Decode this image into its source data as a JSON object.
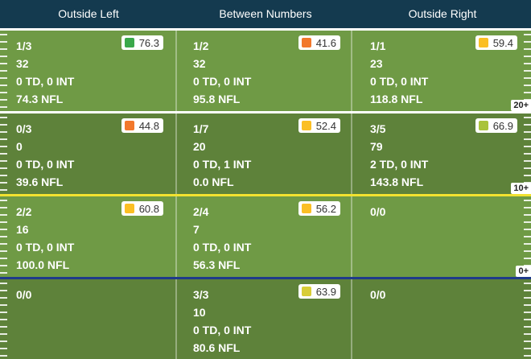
{
  "columns": [
    "Outside Left",
    "Between Numbers",
    "Outside Right"
  ],
  "yard_markers": [
    "20+",
    "10+",
    "0+"
  ],
  "colors": {
    "green": "#3aa84a",
    "orange": "#f2782c",
    "amber": "#fbbf24",
    "yellow": "#d8cd36",
    "lime": "#a9c33b"
  },
  "rows": [
    [
      {
        "att": "1/3",
        "yds": "32",
        "tdint": "0 TD, 0 INT",
        "rating": "74.3 NFL",
        "grade": "76.3",
        "grade_color": "#3aa84a"
      },
      {
        "att": "1/2",
        "yds": "32",
        "tdint": "0 TD, 0 INT",
        "rating": "95.8 NFL",
        "grade": "41.6",
        "grade_color": "#f2782c"
      },
      {
        "att": "1/1",
        "yds": "23",
        "tdint": "0 TD, 0 INT",
        "rating": "118.8 NFL",
        "grade": "59.4",
        "grade_color": "#fbbf24"
      }
    ],
    [
      {
        "att": "0/3",
        "yds": "0",
        "tdint": "0 TD, 0 INT",
        "rating": "39.6 NFL",
        "grade": "44.8",
        "grade_color": "#f2782c"
      },
      {
        "att": "1/7",
        "yds": "20",
        "tdint": "0 TD, 1 INT",
        "rating": "0.0 NFL",
        "grade": "52.4",
        "grade_color": "#fbbf24"
      },
      {
        "att": "3/5",
        "yds": "79",
        "tdint": "2 TD, 0 INT",
        "rating": "143.8 NFL",
        "grade": "66.9",
        "grade_color": "#a9c33b"
      }
    ],
    [
      {
        "att": "2/2",
        "yds": "16",
        "tdint": "0 TD, 0 INT",
        "rating": "100.0 NFL",
        "grade": "60.8",
        "grade_color": "#fbbf24"
      },
      {
        "att": "2/4",
        "yds": "7",
        "tdint": "0 TD, 0 INT",
        "rating": "56.3 NFL",
        "grade": "56.2",
        "grade_color": "#fbbf24"
      },
      {
        "att": "0/0"
      }
    ],
    [
      {
        "att": "0/0"
      },
      {
        "att": "3/3",
        "yds": "10",
        "tdint": "0 TD, 0 INT",
        "rating": "80.6 NFL",
        "grade": "63.9",
        "grade_color": "#d8cd36"
      },
      {
        "att": "0/0"
      }
    ]
  ]
}
